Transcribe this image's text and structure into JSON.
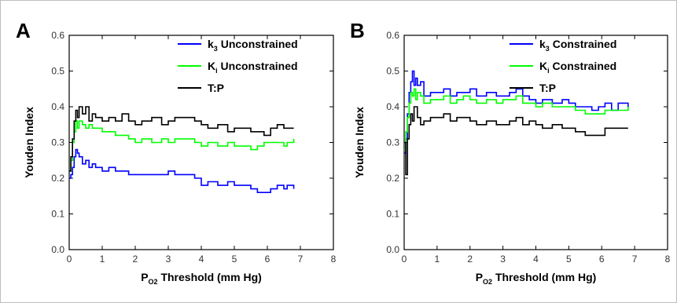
{
  "panels": [
    {
      "letter": "A",
      "xlabel_main": "P",
      "xlabel_sub": "O2",
      "xlabel_rest": " Threshold (mm Hg)",
      "ylabel": "Youden Index",
      "legend": [
        {
          "main": "k",
          "sub": "3",
          "rest": " Unconstrained",
          "color": "#0000ff"
        },
        {
          "main": "K",
          "sub": "i",
          "rest": " Unconstrained",
          "color": "#00ff00"
        },
        {
          "main": "T:P",
          "sub": "",
          "rest": "",
          "color": "#000000"
        }
      ]
    },
    {
      "letter": "B",
      "xlabel_main": "P",
      "xlabel_sub": "O2",
      "xlabel_rest": " Threshold (mm Hg)",
      "ylabel": "Youden Index",
      "legend": [
        {
          "main": "k",
          "sub": "3",
          "rest": " Constrained",
          "color": "#0000ff"
        },
        {
          "main": "K",
          "sub": "i",
          "rest": " Constrained",
          "color": "#00ff00"
        },
        {
          "main": "T:P",
          "sub": "",
          "rest": "",
          "color": "#000000"
        }
      ]
    }
  ],
  "chart_data": [
    {
      "type": "line",
      "xlim": [
        0,
        8
      ],
      "ylim": [
        0,
        0.6
      ],
      "xticks": [
        "0",
        "1",
        "2",
        "3",
        "4",
        "5",
        "6",
        "7",
        "8"
      ],
      "yticks": [
        "0.0",
        "0.1",
        "0.2",
        "0.3",
        "0.4",
        "0.5",
        "0.6"
      ],
      "legend_position": "top-right",
      "series": [
        {
          "name": "k3 Unconstrained",
          "color": "#0000ff",
          "x": [
            0,
            0.05,
            0.1,
            0.15,
            0.2,
            0.25,
            0.3,
            0.4,
            0.5,
            0.6,
            0.7,
            0.8,
            1.0,
            1.2,
            1.4,
            1.6,
            1.8,
            2.0,
            2.2,
            2.5,
            2.8,
            3.0,
            3.2,
            3.5,
            3.8,
            4.0,
            4.2,
            4.5,
            4.8,
            5.0,
            5.2,
            5.5,
            5.7,
            5.9,
            6.1,
            6.3,
            6.5,
            6.6,
            6.8
          ],
          "y": [
            0.2,
            0.21,
            0.23,
            0.26,
            0.28,
            0.27,
            0.26,
            0.24,
            0.25,
            0.23,
            0.24,
            0.23,
            0.22,
            0.23,
            0.22,
            0.22,
            0.21,
            0.21,
            0.21,
            0.21,
            0.21,
            0.22,
            0.21,
            0.21,
            0.2,
            0.18,
            0.19,
            0.18,
            0.19,
            0.18,
            0.18,
            0.17,
            0.16,
            0.16,
            0.17,
            0.18,
            0.17,
            0.18,
            0.17
          ]
        },
        {
          "name": "Ki Unconstrained",
          "color": "#00ff00",
          "x": [
            0,
            0.05,
            0.1,
            0.15,
            0.2,
            0.25,
            0.3,
            0.4,
            0.5,
            0.6,
            0.7,
            0.8,
            1.0,
            1.2,
            1.4,
            1.6,
            1.8,
            2.0,
            2.2,
            2.5,
            2.8,
            3.0,
            3.2,
            3.5,
            3.8,
            4.0,
            4.2,
            4.5,
            4.8,
            5.0,
            5.2,
            5.5,
            5.7,
            5.9,
            6.1,
            6.3,
            6.5,
            6.6,
            6.8
          ],
          "y": [
            0.22,
            0.25,
            0.3,
            0.33,
            0.36,
            0.34,
            0.36,
            0.35,
            0.34,
            0.35,
            0.34,
            0.34,
            0.33,
            0.33,
            0.32,
            0.32,
            0.31,
            0.3,
            0.31,
            0.3,
            0.31,
            0.3,
            0.31,
            0.31,
            0.3,
            0.29,
            0.3,
            0.29,
            0.3,
            0.29,
            0.29,
            0.28,
            0.29,
            0.3,
            0.3,
            0.3,
            0.29,
            0.3,
            0.31
          ]
        },
        {
          "name": "T:P",
          "color": "#000000",
          "x": [
            0,
            0.05,
            0.1,
            0.15,
            0.2,
            0.25,
            0.3,
            0.4,
            0.5,
            0.6,
            0.7,
            0.8,
            1.0,
            1.2,
            1.4,
            1.6,
            1.8,
            2.0,
            2.2,
            2.5,
            2.8,
            3.0,
            3.2,
            3.5,
            3.8,
            4.0,
            4.2,
            4.5,
            4.8,
            5.0,
            5.2,
            5.5,
            5.7,
            5.9,
            6.1,
            6.3,
            6.5,
            6.6,
            6.8
          ],
          "y": [
            0.22,
            0.26,
            0.31,
            0.36,
            0.39,
            0.37,
            0.4,
            0.38,
            0.4,
            0.36,
            0.38,
            0.37,
            0.36,
            0.37,
            0.36,
            0.38,
            0.36,
            0.35,
            0.36,
            0.37,
            0.35,
            0.36,
            0.37,
            0.37,
            0.36,
            0.35,
            0.34,
            0.35,
            0.33,
            0.34,
            0.34,
            0.33,
            0.33,
            0.32,
            0.34,
            0.35,
            0.34,
            0.34,
            0.34
          ]
        }
      ]
    },
    {
      "type": "line",
      "xlim": [
        0,
        8
      ],
      "ylim": [
        0,
        0.6
      ],
      "xticks": [
        "0",
        "1",
        "2",
        "3",
        "4",
        "5",
        "6",
        "7",
        "8"
      ],
      "yticks": [
        "0.0",
        "0.1",
        "0.2",
        "0.3",
        "0.4",
        "0.5",
        "0.6"
      ],
      "legend_position": "top-right",
      "series": [
        {
          "name": "k3 Constrained",
          "color": "#0000ff",
          "x": [
            0,
            0.05,
            0.1,
            0.15,
            0.2,
            0.25,
            0.3,
            0.35,
            0.4,
            0.5,
            0.6,
            0.8,
            1.0,
            1.2,
            1.4,
            1.6,
            1.8,
            2.0,
            2.2,
            2.5,
            2.8,
            3.0,
            3.2,
            3.4,
            3.6,
            3.8,
            4.0,
            4.2,
            4.5,
            4.8,
            5.0,
            5.2,
            5.5,
            5.7,
            5.9,
            6.1,
            6.3,
            6.5,
            6.8
          ],
          "y": [
            0.27,
            0.31,
            0.38,
            0.44,
            0.47,
            0.5,
            0.46,
            0.48,
            0.46,
            0.47,
            0.43,
            0.44,
            0.44,
            0.45,
            0.43,
            0.44,
            0.44,
            0.45,
            0.43,
            0.44,
            0.43,
            0.43,
            0.44,
            0.45,
            0.43,
            0.42,
            0.41,
            0.42,
            0.41,
            0.42,
            0.41,
            0.4,
            0.4,
            0.39,
            0.4,
            0.41,
            0.39,
            0.41,
            0.39
          ]
        },
        {
          "name": "Ki Constrained",
          "color": "#00ff00",
          "x": [
            0,
            0.05,
            0.1,
            0.15,
            0.2,
            0.25,
            0.3,
            0.35,
            0.4,
            0.5,
            0.6,
            0.8,
            1.0,
            1.2,
            1.4,
            1.6,
            1.8,
            2.0,
            2.2,
            2.5,
            2.8,
            3.0,
            3.2,
            3.4,
            3.6,
            3.8,
            4.0,
            4.2,
            4.5,
            4.8,
            5.0,
            5.2,
            5.5,
            5.7,
            5.9,
            6.1,
            6.3,
            6.5,
            6.8
          ],
          "y": [
            0.28,
            0.33,
            0.37,
            0.41,
            0.44,
            0.43,
            0.45,
            0.42,
            0.44,
            0.43,
            0.41,
            0.42,
            0.42,
            0.43,
            0.41,
            0.42,
            0.43,
            0.42,
            0.41,
            0.42,
            0.41,
            0.42,
            0.42,
            0.43,
            0.41,
            0.41,
            0.4,
            0.41,
            0.4,
            0.4,
            0.4,
            0.39,
            0.38,
            0.38,
            0.38,
            0.39,
            0.39,
            0.39,
            0.4
          ]
        },
        {
          "name": "T:P",
          "color": "#000000",
          "x": [
            0,
            0.05,
            0.1,
            0.15,
            0.2,
            0.25,
            0.3,
            0.4,
            0.5,
            0.6,
            0.8,
            1.0,
            1.2,
            1.4,
            1.6,
            1.8,
            2.0,
            2.2,
            2.5,
            2.8,
            3.0,
            3.2,
            3.4,
            3.6,
            3.8,
            4.0,
            4.2,
            4.5,
            4.8,
            5.0,
            5.2,
            5.5,
            5.7,
            5.9,
            6.1,
            6.3,
            6.5,
            6.8
          ],
          "y": [
            0.3,
            0.21,
            0.31,
            0.35,
            0.38,
            0.36,
            0.4,
            0.37,
            0.35,
            0.36,
            0.37,
            0.37,
            0.38,
            0.36,
            0.37,
            0.37,
            0.36,
            0.35,
            0.36,
            0.35,
            0.35,
            0.36,
            0.37,
            0.35,
            0.36,
            0.35,
            0.34,
            0.35,
            0.34,
            0.34,
            0.33,
            0.32,
            0.32,
            0.32,
            0.34,
            0.34,
            0.34,
            0.34
          ]
        }
      ]
    }
  ]
}
